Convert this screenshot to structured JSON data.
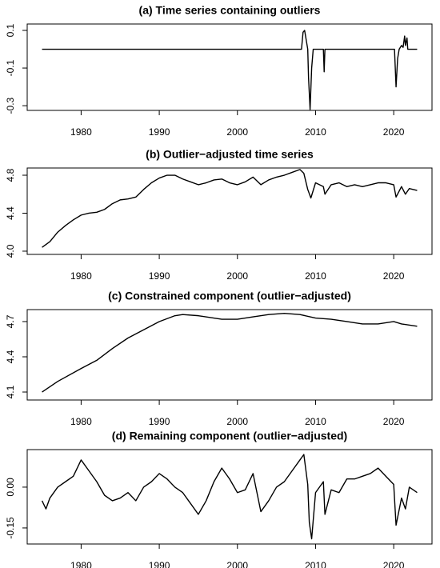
{
  "chart_data": [
    {
      "type": "line",
      "title": "(a) Time series containing outliers",
      "x": [
        1975,
        2008.2,
        2008.4,
        2008.6,
        2008.8,
        2009.0,
        2009.1,
        2009.3,
        2009.5,
        2009.7,
        2011,
        2011.1,
        2011.2,
        2020.1,
        2020.3,
        2020.5,
        2020.7,
        2021,
        2021.2,
        2021.4,
        2021.5,
        2021.7,
        2021.8,
        2023
      ],
      "values": [
        0,
        0,
        0.09,
        0.1,
        0.05,
        0,
        -0.15,
        -0.32,
        -0.1,
        0,
        0,
        -0.12,
        0,
        0,
        -0.2,
        -0.05,
        0,
        0.02,
        0.01,
        0.07,
        0.02,
        0.06,
        0,
        0
      ],
      "color": "#000000",
      "xlim": [
        1973.1,
        2024.9
      ],
      "xticks": [
        1980,
        1990,
        2000,
        2010,
        2020
      ],
      "ylim": [
        -0.325,
        0.134
      ],
      "yticks": [
        0.1,
        -0.1,
        -0.3
      ]
    },
    {
      "type": "line",
      "title": "(b) Outlier−adjusted time series",
      "x": [
        1975,
        1976,
        1977,
        1978,
        1979,
        1980,
        1981,
        1982,
        1983,
        1984,
        1985,
        1986,
        1987,
        1988,
        1989,
        1990,
        1991,
        1992,
        1993,
        1994,
        1995,
        1996,
        1997,
        1998,
        1999,
        2000,
        2001,
        2002,
        2003,
        2004,
        2005,
        2006,
        2007,
        2008,
        2008.5,
        2009,
        2009.4,
        2010,
        2011,
        2011.2,
        2012,
        2013,
        2014,
        2015,
        2016,
        2017,
        2018,
        2019,
        2020,
        2020.3,
        2021,
        2021.5,
        2022,
        2023
      ],
      "values": [
        4.04,
        4.1,
        4.2,
        4.27,
        4.33,
        4.38,
        4.4,
        4.41,
        4.44,
        4.5,
        4.54,
        4.55,
        4.57,
        4.65,
        4.72,
        4.77,
        4.8,
        4.8,
        4.76,
        4.73,
        4.7,
        4.72,
        4.75,
        4.76,
        4.72,
        4.7,
        4.73,
        4.78,
        4.7,
        4.75,
        4.78,
        4.8,
        4.83,
        4.86,
        4.82,
        4.65,
        4.56,
        4.72,
        4.68,
        4.6,
        4.7,
        4.72,
        4.68,
        4.7,
        4.68,
        4.7,
        4.72,
        4.72,
        4.7,
        4.57,
        4.68,
        4.6,
        4.66,
        4.64
      ],
      "color": "#000000",
      "xlim": [
        1973.1,
        2024.9
      ],
      "xticks": [
        1980,
        1990,
        2000,
        2010,
        2020
      ],
      "ylim": [
        3.966,
        4.876
      ],
      "yticks": [
        {
          "value": 4,
          "label": "4.0"
        },
        4.4,
        4.8
      ]
    },
    {
      "type": "line",
      "title": "(c) Constrained component (outlier−adjusted)",
      "x": [
        1975,
        1977,
        1980,
        1982,
        1984,
        1986,
        1988,
        1990,
        1992,
        1993,
        1995,
        1998,
        2000,
        2002,
        2004,
        2006,
        2008,
        2010,
        2012,
        2014,
        2016,
        2018,
        2020,
        2021,
        2023
      ],
      "values": [
        4.1,
        4.19,
        4.3,
        4.37,
        4.47,
        4.56,
        4.63,
        4.7,
        4.75,
        4.76,
        4.75,
        4.72,
        4.72,
        4.74,
        4.76,
        4.77,
        4.76,
        4.73,
        4.72,
        4.7,
        4.68,
        4.68,
        4.7,
        4.68,
        4.66
      ],
      "color": "#000000",
      "xlim": [
        1973.1,
        2024.9
      ],
      "xticks": [
        1980,
        1990,
        2000,
        2010,
        2020
      ],
      "ylim": [
        4.032,
        4.802
      ],
      "yticks": [
        4.1,
        4.4,
        4.7
      ]
    },
    {
      "type": "line",
      "title": "(d) Remaining component (outlier−adjusted)",
      "x": [
        1975,
        1975.5,
        1976,
        1977,
        1978,
        1979,
        1980,
        1981,
        1982,
        1983,
        1984,
        1985,
        1986,
        1987,
        1988,
        1989,
        1990,
        1991,
        1992,
        1993,
        1994,
        1995,
        1996,
        1997,
        1998,
        1999,
        2000,
        2001,
        2002,
        2002.5,
        2003,
        2004,
        2005,
        2006,
        2007,
        2008,
        2008.5,
        2009,
        2009.2,
        2009.5,
        2010,
        2011,
        2011.2,
        2012,
        2013,
        2014,
        2015,
        2016,
        2017,
        2018,
        2019,
        2020,
        2020.3,
        2021,
        2021.5,
        2022,
        2023
      ],
      "values": [
        -0.05,
        -0.08,
        -0.04,
        0,
        0.02,
        0.04,
        0.1,
        0.06,
        0.02,
        -0.03,
        -0.05,
        -0.04,
        -0.02,
        -0.05,
        0,
        0.02,
        0.05,
        0.03,
        0,
        -0.02,
        -0.06,
        -0.1,
        -0.05,
        0.02,
        0.07,
        0.03,
        -0.02,
        -0.01,
        0.05,
        -0.02,
        -0.09,
        -0.05,
        0,
        0.02,
        0.06,
        0.1,
        0.12,
        0.01,
        -0.13,
        -0.19,
        -0.02,
        0.02,
        -0.1,
        -0.01,
        -0.02,
        0.03,
        0.03,
        0.04,
        0.05,
        0.07,
        0.04,
        0.01,
        -0.14,
        -0.04,
        -0.08,
        0,
        -0.02
      ],
      "color": "#000000",
      "xlim": [
        1973.1,
        2024.9
      ],
      "xticks": [
        1980,
        1990,
        2000,
        2010,
        2020
      ],
      "ylim": [
        -0.209,
        0.138
      ],
      "yticks": [
        {
          "value": 0,
          "label": "0.00"
        },
        {
          "value": -0.15,
          "label": "-0.15"
        }
      ]
    }
  ]
}
